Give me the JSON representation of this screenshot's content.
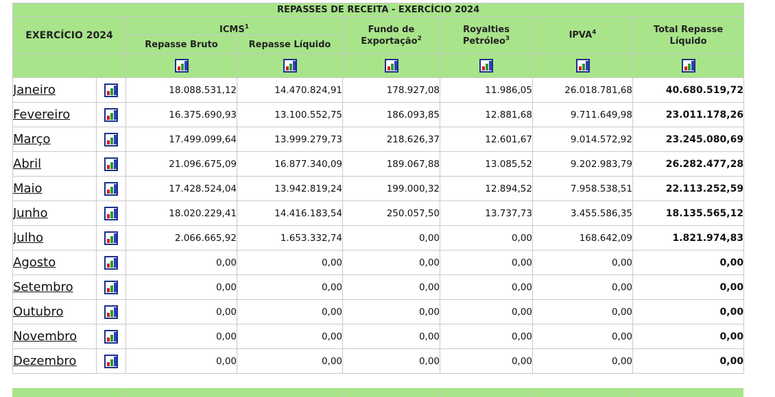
{
  "title": "REPASSES DE RECEITA - EXERCÍCIO 2024",
  "header": {
    "exercicio": "EXERCÍCIO 2024",
    "icms": "ICMS",
    "icms_sup": "1",
    "repasse_bruto": "Repasse Bruto",
    "repasse_liquido": "Repasse Líquido",
    "fundo_l1": "Fundo de",
    "fundo_l2": "Exportação",
    "fundo_sup": "2",
    "royalties_l1": "Royalties",
    "royalties_l2": "Petróleo",
    "royalties_sup": "3",
    "ipva": "IPVA",
    "ipva_sup": "4",
    "total_l1": "Total Repasse",
    "total_l2": "Líquido"
  },
  "rows": [
    {
      "month": "Janeiro",
      "bruto": "18.088.531,12",
      "liquido": "14.470.824,91",
      "fundo": "178.927,08",
      "royalties": "11.986,05",
      "ipva": "26.018.781,68",
      "total": "40.680.519,72"
    },
    {
      "month": "Fevereiro",
      "bruto": "16.375.690,93",
      "liquido": "13.100.552,75",
      "fundo": "186.093,85",
      "royalties": "12.881,68",
      "ipva": "9.711.649,98",
      "total": "23.011.178,26"
    },
    {
      "month": "Março",
      "bruto": "17.499.099,64",
      "liquido": "13.999.279,73",
      "fundo": "218.626,37",
      "royalties": "12.601,67",
      "ipva": "9.014.572,92",
      "total": "23.245.080,69"
    },
    {
      "month": "Abril",
      "bruto": "21.096.675,09",
      "liquido": "16.877.340,09",
      "fundo": "189.067,88",
      "royalties": "13.085,52",
      "ipva": "9.202.983,79",
      "total": "26.282.477,28"
    },
    {
      "month": "Maio",
      "bruto": "17.428.524,04",
      "liquido": "13.942.819,24",
      "fundo": "199.000,32",
      "royalties": "12.894,52",
      "ipva": "7.958.538,51",
      "total": "22.113.252,59"
    },
    {
      "month": "Junho",
      "bruto": "18.020.229,41",
      "liquido": "14.416.183,54",
      "fundo": "250.057,50",
      "royalties": "13.737,73",
      "ipva": "3.455.586,35",
      "total": "18.135.565,12"
    },
    {
      "month": "Julho",
      "bruto": "2.066.665,92",
      "liquido": "1.653.332,74",
      "fundo": "0,00",
      "royalties": "0,00",
      "ipva": "168.642,09",
      "total": "1.821.974,83"
    },
    {
      "month": "Agosto",
      "bruto": "0,00",
      "liquido": "0,00",
      "fundo": "0,00",
      "royalties": "0,00",
      "ipva": "0,00",
      "total": "0,00"
    },
    {
      "month": "Setembro",
      "bruto": "0,00",
      "liquido": "0,00",
      "fundo": "0,00",
      "royalties": "0,00",
      "ipva": "0,00",
      "total": "0,00"
    },
    {
      "month": "Outubro",
      "bruto": "0,00",
      "liquido": "0,00",
      "fundo": "0,00",
      "royalties": "0,00",
      "ipva": "0,00",
      "total": "0,00"
    },
    {
      "month": "Novembro",
      "bruto": "0,00",
      "liquido": "0,00",
      "fundo": "0,00",
      "royalties": "0,00",
      "ipva": "0,00",
      "total": "0,00"
    },
    {
      "month": "Dezembro",
      "bruto": "0,00",
      "liquido": "0,00",
      "fundo": "0,00",
      "royalties": "0,00",
      "ipva": "0,00",
      "total": "0,00"
    }
  ],
  "icon": "bar-chart-icon",
  "colors": {
    "header_bg": "#a8e48a",
    "border": "#c9c9c9",
    "icon_frame": "#1d2f88"
  }
}
